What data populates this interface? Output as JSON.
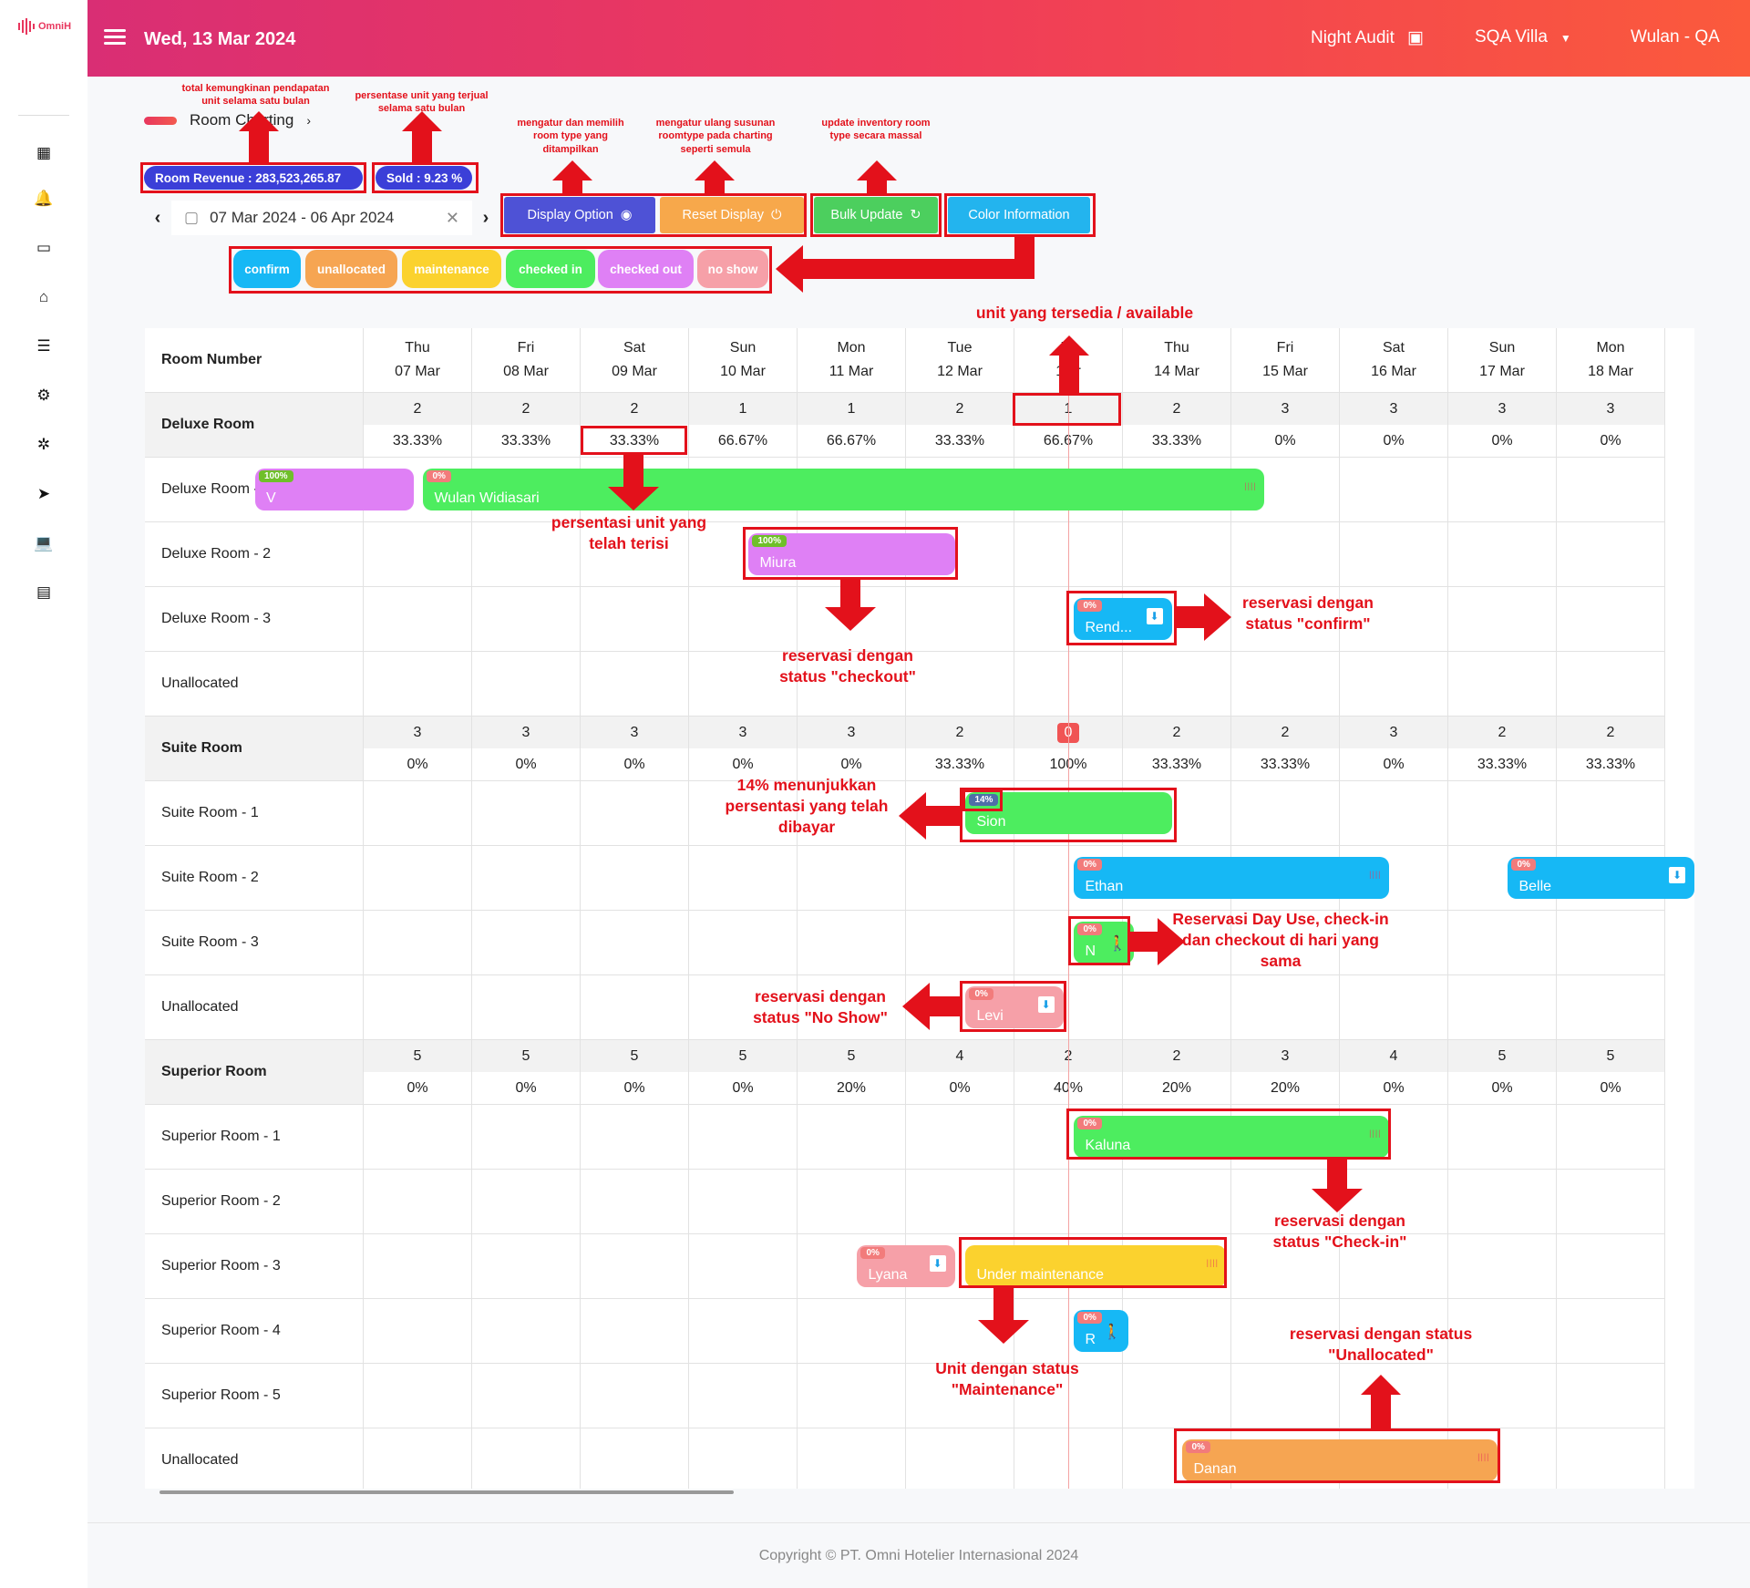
{
  "app": {
    "logo_text": "OmniH"
  },
  "header": {
    "date": "Wed, 13 Mar 2024",
    "night_audit": "Night Audit",
    "property": "SQA Villa",
    "user": "Wulan - QA"
  },
  "breadcrumb": {
    "label": "Room Charting"
  },
  "stats": {
    "room_revenue": "Room Revenue : 283,523,265.87",
    "sold": "Sold : 9.23 %"
  },
  "date_range": {
    "value": "07 Mar 2024 - 06 Apr 2024"
  },
  "toolbar": {
    "display_option": "Display Option",
    "reset_display": "Reset Display",
    "bulk_update": "Bulk Update",
    "color_information": "Color Information"
  },
  "legend": [
    "confirm",
    "unallocated",
    "maintenance",
    "checked in",
    "checked out",
    "no show"
  ],
  "colors": {
    "confirm": "#16b8f5",
    "unallocated": "#f6a552",
    "maintenance": "#fbd22e",
    "checked_in": "#4ded5f",
    "checked_out": "#df80f5",
    "no_show": "#f6a0a8",
    "display_option": "#4e52d6",
    "reset_display": "#f7a84b",
    "bulk_update": "#4ccf5e",
    "color_information": "#23b4ee",
    "accent": "#e3111b"
  },
  "grid": {
    "room_number_header": "Room Number",
    "days": [
      {
        "dow": "Thu",
        "date": "07 Mar"
      },
      {
        "dow": "Fri",
        "date": "08 Mar"
      },
      {
        "dow": "Sat",
        "date": "09 Mar"
      },
      {
        "dow": "Sun",
        "date": "10 Mar"
      },
      {
        "dow": "Mon",
        "date": "11 Mar"
      },
      {
        "dow": "Tue",
        "date": "12 Mar"
      },
      {
        "dow": "W",
        "date": "1  ar"
      },
      {
        "dow": "Thu",
        "date": "14 Mar"
      },
      {
        "dow": "Fri",
        "date": "15 Mar"
      },
      {
        "dow": "Sat",
        "date": "16 Mar"
      },
      {
        "dow": "Sun",
        "date": "17 Mar"
      },
      {
        "dow": "Mon",
        "date": "18 Mar"
      }
    ],
    "groups": [
      {
        "name": "Deluxe Room",
        "available": [
          "2",
          "2",
          "2",
          "1",
          "1",
          "2",
          "1",
          "2",
          "3",
          "3",
          "3",
          "3"
        ],
        "percent": [
          "33.33%",
          "33.33%",
          "33.33%",
          "66.67%",
          "66.67%",
          "33.33%",
          "66.67%",
          "33.33%",
          "0%",
          "0%",
          "0%",
          "0%"
        ],
        "rooms": [
          "Deluxe Room - 1",
          "Deluxe Room - 2",
          "Deluxe Room - 3",
          "Unallocated"
        ]
      },
      {
        "name": "Suite Room",
        "available": [
          "3",
          "3",
          "3",
          "3",
          "3",
          "2",
          "0",
          "2",
          "2",
          "3",
          "2",
          "2"
        ],
        "percent": [
          "0%",
          "0%",
          "0%",
          "0%",
          "0%",
          "33.33%",
          "100%",
          "33.33%",
          "33.33%",
          "0%",
          "33.33%",
          "33.33%"
        ],
        "rooms": [
          "Suite Room - 1",
          "Suite Room - 2",
          "Suite Room - 3",
          "Unallocated"
        ]
      },
      {
        "name": "Superior Room",
        "available": [
          "5",
          "5",
          "5",
          "5",
          "5",
          "4",
          "2",
          "2",
          "3",
          "4",
          "5",
          "5"
        ],
        "percent": [
          "0%",
          "0%",
          "0%",
          "0%",
          "20%",
          "0%",
          "40%",
          "20%",
          "20%",
          "0%",
          "0%",
          "0%"
        ],
        "rooms": [
          "Superior Room - 1",
          "Superior Room - 2",
          "Superior Room - 3",
          "Superior Room - 4",
          "Superior Room - 5",
          "Unallocated"
        ]
      }
    ]
  },
  "reservations": [
    {
      "name": "V",
      "paid": "100%",
      "status": "checked_out",
      "group": 0,
      "room": 0
    },
    {
      "name": "Wulan Widiasari",
      "paid": "0%",
      "status": "checked_in",
      "group": 0,
      "room": 0
    },
    {
      "name": "Miura",
      "paid": "100%",
      "status": "checked_out",
      "group": 0,
      "room": 1
    },
    {
      "name": "Rend...",
      "paid": "0%",
      "status": "confirm",
      "group": 0,
      "room": 2
    },
    {
      "name": "Sion",
      "paid": "14%",
      "status": "checked_in",
      "group": 1,
      "room": 0
    },
    {
      "name": "Ethan",
      "paid": "0%",
      "status": "confirm",
      "group": 1,
      "room": 1
    },
    {
      "name": "Belle",
      "paid": "0%",
      "status": "confirm",
      "group": 1,
      "room": 1
    },
    {
      "name": "N",
      "paid": "0%",
      "status": "checked_in",
      "group": 1,
      "room": 2
    },
    {
      "name": "Levi",
      "paid": "0%",
      "status": "no_show",
      "group": 1,
      "room": 3
    },
    {
      "name": "Kaluna",
      "paid": "0%",
      "status": "checked_in",
      "group": 2,
      "room": 0
    },
    {
      "name": "Lyana",
      "paid": "0%",
      "status": "no_show",
      "group": 2,
      "room": 2
    },
    {
      "name": "Under maintenance",
      "paid": "",
      "status": "maintenance",
      "group": 2,
      "room": 2
    },
    {
      "name": "R",
      "paid": "0%",
      "status": "confirm",
      "group": 2,
      "room": 3
    },
    {
      "name": "Danan",
      "paid": "0%",
      "status": "unallocated",
      "group": 2,
      "room": 5
    }
  ],
  "annotations": {
    "revenue": "total kemungkinan pendapatan unit selama satu bulan",
    "sold": "persentase unit yang terjual selama satu bulan",
    "display_option": "mengatur dan memilih room type yang ditampilkan",
    "reset_display": "mengatur ulang susunan roomtype pada charting seperti semula",
    "bulk_update": "update inventory room type secara massal",
    "available": "unit yang tersedia / available",
    "occupied_pct": "persentasi unit yang telah terisi",
    "checkout": "reservasi dengan status \"checkout\"",
    "confirm": "reservasi dengan status \"confirm\"",
    "paid_pct": "14% menunjukkan persentasi yang telah dibayar",
    "day_use": "Reservasi Day Use, check-in dan checkout di hari yang sama",
    "no_show": "reservasi dengan status \"No Show\"",
    "checkin": "reservasi dengan status \"Check-in\"",
    "maintenance": "Unit dengan status \"Maintenance\"",
    "unallocated": "reservasi dengan status \"Unallocated\""
  },
  "footer": {
    "copyright": "Copyright © PT. Omni Hotelier Internasional 2024"
  }
}
